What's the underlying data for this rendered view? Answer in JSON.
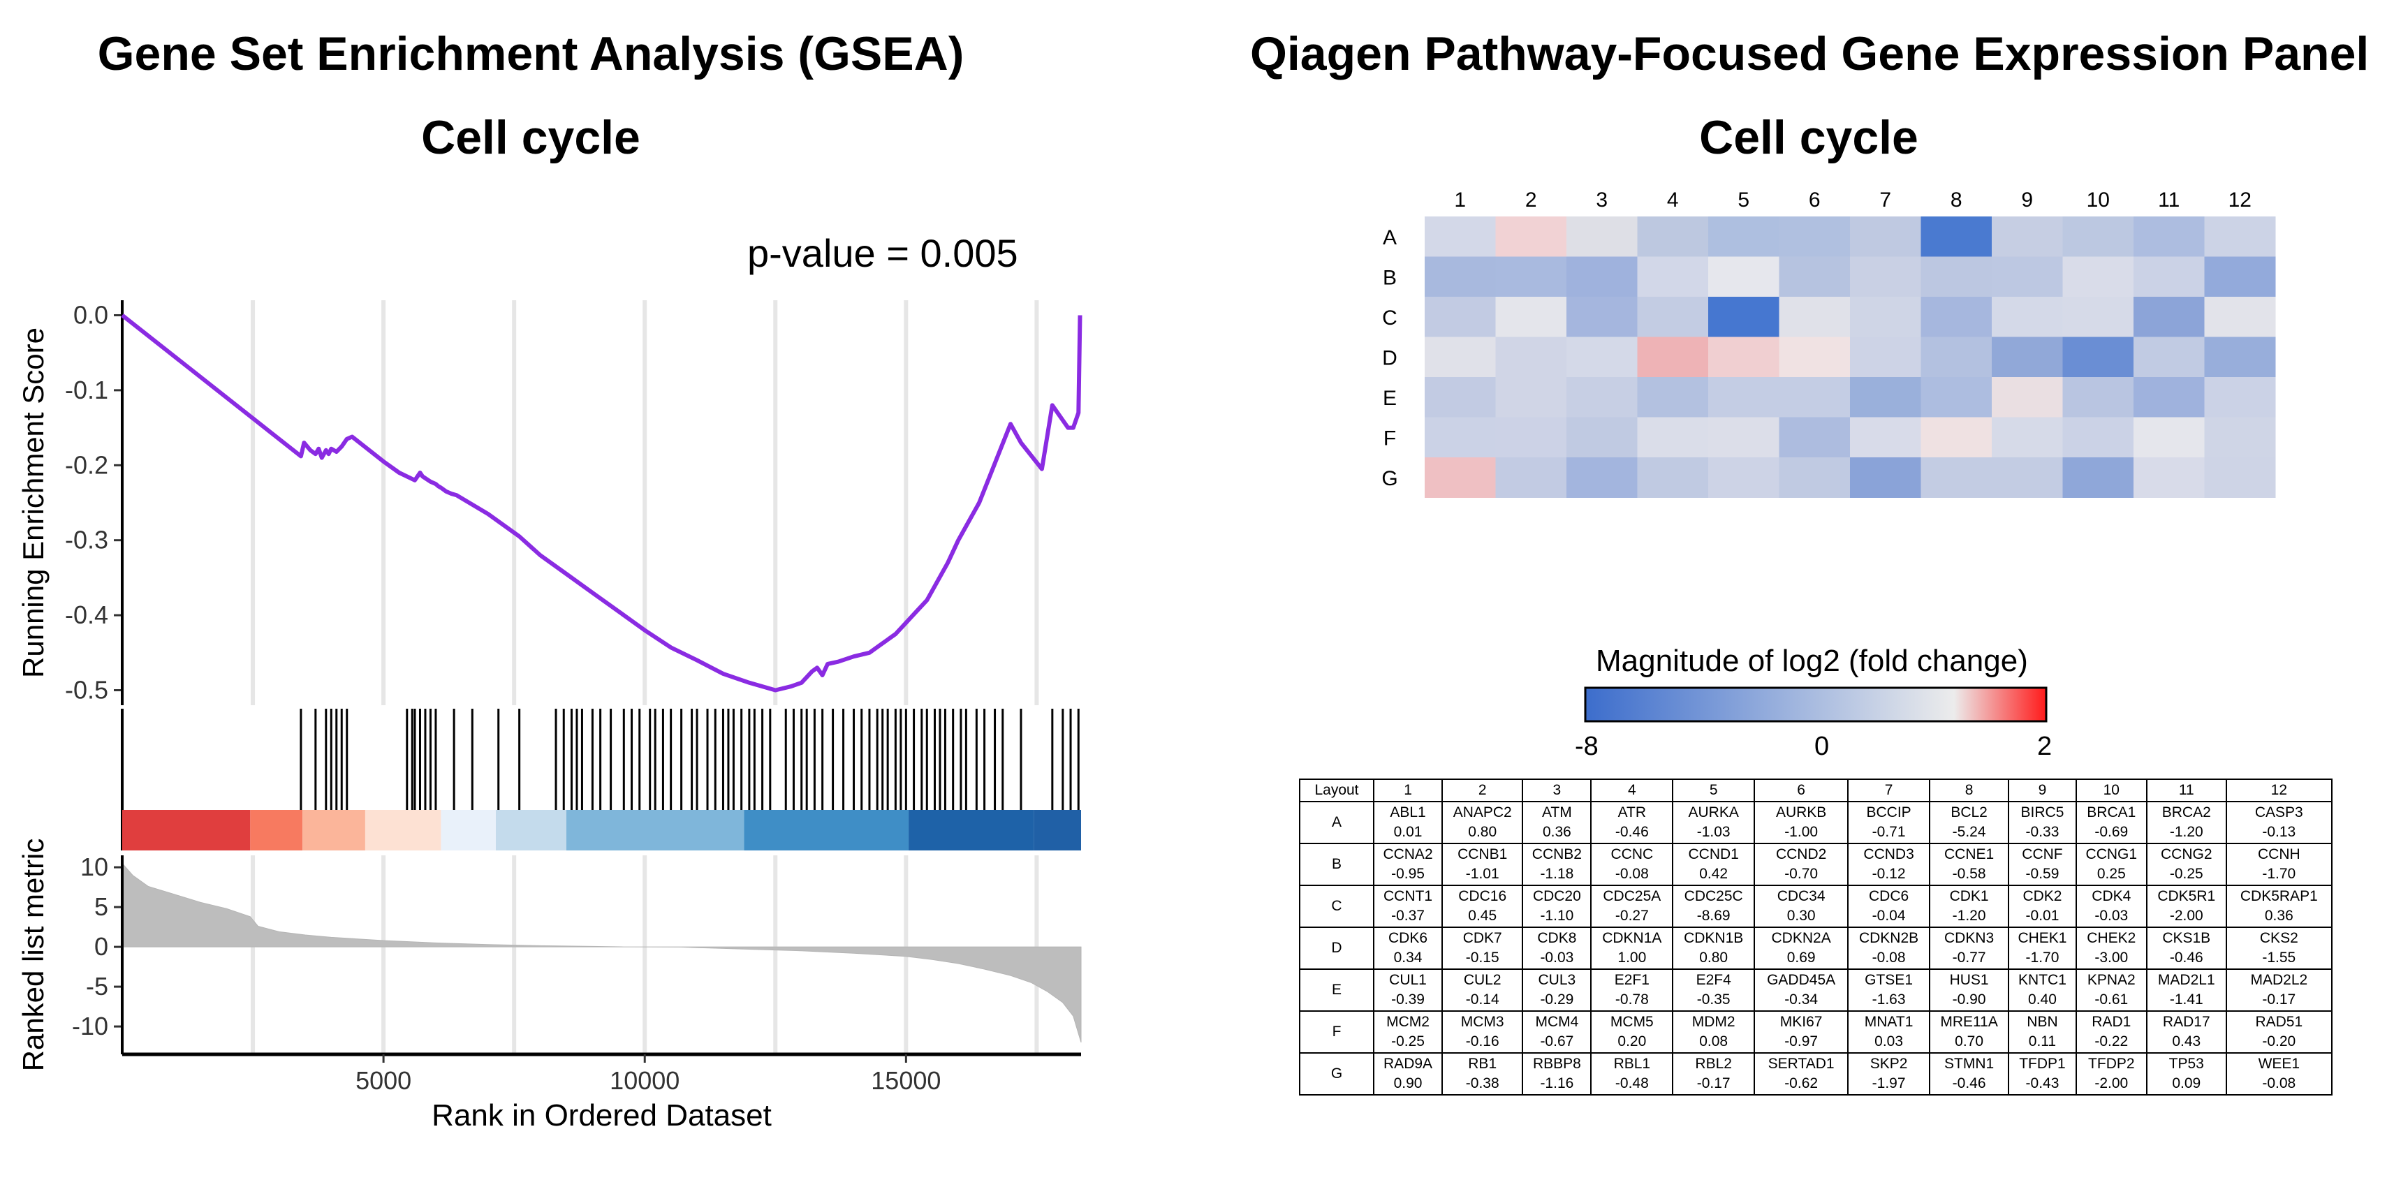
{
  "left": {
    "title": "Gene Set Enrichment Analysis (GSEA)",
    "subtitle": "Cell cycle",
    "pvalue_text": "p-value  = 0.005"
  },
  "right": {
    "title": "Qiagen Pathway-Focused Gene Expression Panel",
    "subtitle": "Cell cycle",
    "legend_title": "Magnitude of log2 (fold change)",
    "legend_ticks": [
      "-8",
      "0",
      "2"
    ]
  },
  "chart_data": [
    {
      "type": "line",
      "ylabel": "Running Enrichment Score",
      "ylim": [
        -0.52,
        0.02
      ],
      "xlim": [
        0,
        18350
      ],
      "yticks": [
        "0.0",
        "-0.1",
        "-0.2",
        "-0.3",
        "-0.4",
        "-0.5"
      ],
      "x": [
        0,
        3420,
        3480,
        3600,
        3700,
        3760,
        3820,
        3900,
        3950,
        4000,
        4100,
        4200,
        4300,
        4400,
        5000,
        5300,
        5600,
        5700,
        5750,
        5900,
        6000,
        6050,
        6100,
        6200,
        6300,
        6400,
        7000,
        7600,
        8000,
        8500,
        9000,
        9500,
        10000,
        10500,
        11000,
        11500,
        12000,
        12500,
        12800,
        13000,
        13200,
        13300,
        13400,
        13500,
        13700,
        14000,
        14300,
        14500,
        14800,
        15000,
        15200,
        15400,
        15600,
        15800,
        16000,
        16200,
        16400,
        16600,
        16800,
        17000,
        17200,
        17600,
        17800,
        18100,
        18200,
        18300,
        18330
      ],
      "y": [
        0.0,
        -0.188,
        -0.17,
        -0.18,
        -0.185,
        -0.178,
        -0.19,
        -0.18,
        -0.185,
        -0.178,
        -0.182,
        -0.175,
        -0.165,
        -0.162,
        -0.195,
        -0.21,
        -0.22,
        -0.21,
        -0.215,
        -0.222,
        -0.225,
        -0.228,
        -0.23,
        -0.235,
        -0.238,
        -0.24,
        -0.265,
        -0.295,
        -0.32,
        -0.345,
        -0.37,
        -0.395,
        -0.42,
        -0.443,
        -0.46,
        -0.478,
        -0.49,
        -0.5,
        -0.495,
        -0.49,
        -0.475,
        -0.47,
        -0.48,
        -0.465,
        -0.462,
        -0.455,
        -0.45,
        -0.44,
        -0.425,
        -0.41,
        -0.395,
        -0.38,
        -0.355,
        -0.33,
        -0.3,
        -0.275,
        -0.25,
        -0.215,
        -0.18,
        -0.145,
        -0.17,
        -0.205,
        -0.12,
        -0.15,
        -0.15,
        -0.13,
        -0.0
      ],
      "xgrid": [
        2500,
        5000,
        7500,
        10000,
        12500,
        15000,
        17500
      ]
    },
    {
      "type": "barcode",
      "hits": [
        3420,
        3700,
        3900,
        4000,
        4100,
        4200,
        4300,
        5450,
        5550,
        5600,
        5700,
        5800,
        5900,
        6000,
        6350,
        6700,
        7200,
        7600,
        8300,
        8450,
        8600,
        8700,
        8800,
        9000,
        9150,
        9350,
        9600,
        9750,
        9900,
        10100,
        10200,
        10350,
        10500,
        10700,
        10900,
        11000,
        11200,
        11350,
        11500,
        11600,
        11700,
        11850,
        12000,
        12100,
        12250,
        12400,
        12700,
        12850,
        13000,
        13100,
        13250,
        13400,
        13600,
        13800,
        14000,
        14150,
        14300,
        14450,
        14550,
        14650,
        14800,
        14900,
        15000,
        15150,
        15300,
        15400,
        15550,
        15650,
        15750,
        15900,
        16050,
        16150,
        16350,
        16500,
        16700,
        16850,
        17200,
        17800,
        18000,
        18150,
        18300
      ],
      "color_bands": [
        {
          "from": 0,
          "to": 2450,
          "color": "#e03e3e"
        },
        {
          "from": 2450,
          "to": 3450,
          "color": "#f77a60"
        },
        {
          "from": 3450,
          "to": 4650,
          "color": "#fbb59a"
        },
        {
          "from": 4650,
          "to": 6100,
          "color": "#fde1d3"
        },
        {
          "from": 6100,
          "to": 7150,
          "color": "#e9f1fa"
        },
        {
          "from": 7150,
          "to": 8500,
          "color": "#c4dbec"
        },
        {
          "from": 8500,
          "to": 11900,
          "color": "#7fb6da"
        },
        {
          "from": 11900,
          "to": 15050,
          "color": "#3f8ec6"
        },
        {
          "from": 15050,
          "to": 17450,
          "color": "#1e62a8"
        },
        {
          "from": 17450,
          "to": 18350,
          "color": "#2060a6"
        }
      ]
    },
    {
      "type": "area",
      "ylabel": "Ranked list metric",
      "xlabel": "Rank in Ordered Dataset",
      "ylim": [
        -13.5,
        11.5
      ],
      "yticks": [
        "10",
        "5",
        "0",
        "-5",
        "-10"
      ],
      "xticks": [
        "5000",
        "10000",
        "15000"
      ],
      "x": [
        0,
        200,
        500,
        1000,
        1500,
        2000,
        2450,
        2600,
        3000,
        3500,
        4000,
        5000,
        6000,
        7000,
        8000,
        9000,
        9600,
        9700,
        10700,
        11000,
        12000,
        13000,
        14000,
        15000,
        15500,
        16000,
        16500,
        17000,
        17400,
        17700,
        18000,
        18200,
        18350
      ],
      "y": [
        10.5,
        9.0,
        7.6,
        6.6,
        5.6,
        4.8,
        3.8,
        2.6,
        1.9,
        1.5,
        1.2,
        0.8,
        0.5,
        0.3,
        0.15,
        0.06,
        0.0,
        0.0,
        -0.03,
        -0.1,
        -0.3,
        -0.5,
        -0.8,
        -1.2,
        -1.6,
        -2.1,
        -2.8,
        -3.6,
        -4.5,
        -5.6,
        -7.0,
        -8.7,
        -12.0
      ]
    },
    {
      "type": "heatmap",
      "columns": [
        "1",
        "2",
        "3",
        "4",
        "5",
        "6",
        "7",
        "8",
        "9",
        "10",
        "11",
        "12"
      ],
      "rows": [
        "A",
        "B",
        "C",
        "D",
        "E",
        "F",
        "G"
      ],
      "color_scale": {
        "min": -8,
        "mid": 0,
        "max": 2,
        "low": "#3c6dcc",
        "midc": "#ececec",
        "high": "#ff1a1a"
      },
      "genes": [
        [
          "ABL1",
          "ANAPC2",
          "ATM",
          "ATR",
          "AURKA",
          "AURKB",
          "BCCIP",
          "BCL2",
          "BIRC5",
          "BRCA1",
          "BRCA2",
          "CASP3"
        ],
        [
          "CCNA2",
          "CCNB1",
          "CCNB2",
          "CCNC",
          "CCND1",
          "CCND2",
          "CCND3",
          "CCNE1",
          "CCNF",
          "CCNG1",
          "CCNG2",
          "CCNH"
        ],
        [
          "CCNT1",
          "CDC16",
          "CDC20",
          "CDC25A",
          "CDC25C",
          "CDC34",
          "CDC6",
          "CDK1",
          "CDK2",
          "CDK4",
          "CDK5R1",
          "CDK5RAP1"
        ],
        [
          "CDK6",
          "CDK7",
          "CDK8",
          "CDKN1A",
          "CDKN1B",
          "CDKN2A",
          "CDKN2B",
          "CDKN3",
          "CHEK1",
          "CHEK2",
          "CKS1B",
          "CKS2"
        ],
        [
          "CUL1",
          "CUL2",
          "CUL3",
          "E2F1",
          "E2F4",
          "GADD45A",
          "GTSE1",
          "HUS1",
          "KNTC1",
          "KPNA2",
          "MAD2L1",
          "MAD2L2"
        ],
        [
          "MCM2",
          "MCM3",
          "MCM4",
          "MCM5",
          "MDM2",
          "MKI67",
          "MNAT1",
          "MRE11A",
          "NBN",
          "RAD1",
          "RAD17",
          "RAD51"
        ],
        [
          "RAD9A",
          "RB1",
          "RBBP8",
          "RBL1",
          "RBL2",
          "SERTAD1",
          "SKP2",
          "STMN1",
          "TFDP1",
          "TFDP2",
          "TP53",
          "WEE1"
        ]
      ],
      "values": [
        [
          "0.01",
          "0.80",
          "0.36",
          "-0.46",
          "-1.03",
          "-1.00",
          "-0.71",
          "-5.24",
          "-0.33",
          "-0.69",
          "-1.20",
          "-0.13"
        ],
        [
          "-0.95",
          "-1.01",
          "-1.18",
          "-0.08",
          "0.42",
          "-0.70",
          "-0.12",
          "-0.58",
          "-0.59",
          "0.25",
          "-0.25",
          "-1.70"
        ],
        [
          "-0.37",
          "0.45",
          "-1.10",
          "-0.27",
          "-8.69",
          "0.30",
          "-0.04",
          "-1.20",
          "-0.01",
          "-0.03",
          "-2.00",
          "0.36"
        ],
        [
          "0.34",
          "-0.15",
          "-0.03",
          "1.00",
          "0.80",
          "0.69",
          "-0.08",
          "-0.77",
          "-1.70",
          "-3.00",
          "-0.46",
          "-1.55"
        ],
        [
          "-0.39",
          "-0.14",
          "-0.29",
          "-0.78",
          "-0.35",
          "-0.34",
          "-1.63",
          "-0.90",
          "0.40",
          "-0.61",
          "-1.41",
          "-0.17"
        ],
        [
          "-0.25",
          "-0.16",
          "-0.67",
          "0.20",
          "0.08",
          "-0.97",
          "0.03",
          "0.70",
          "0.11",
          "-0.22",
          "0.43",
          "-0.20"
        ],
        [
          "0.90",
          "-0.38",
          "-1.16",
          "-0.48",
          "-0.17",
          "-0.62",
          "-1.97",
          "-0.46",
          "-0.43",
          "-2.00",
          "0.09",
          "-0.08"
        ]
      ],
      "colors": [
        [
          "#d3d8e8",
          "#f1d2d4",
          "#dedfe6",
          "#bdc8e0",
          "#aebfe0",
          "#b0c0e0",
          "#bfc9e1",
          "#4a7ad0",
          "#c6cee3",
          "#bcc8e1",
          "#adbde0",
          "#ccd3e6"
        ],
        [
          "#a8b9de",
          "#a9badf",
          "#9fb2dd",
          "#d2d7e8",
          "#e6e7ed",
          "#b6c3e0",
          "#c9d0e4",
          "#bcc7e1",
          "#bdc8e2",
          "#d9dce9",
          "#cbd2e6",
          "#93aadb"
        ],
        [
          "#c2cbe3",
          "#e4e5eb",
          "#a5b6de",
          "#c3cce3",
          "#4677d0",
          "#e0e1e9",
          "#cfd5e6",
          "#a6b7de",
          "#d4d9e8",
          "#d6dae8",
          "#8ca4d8",
          "#e2e3ea"
        ],
        [
          "#e0e1e9",
          "#d0d5e6",
          "#d4d9e8",
          "#eeb3b6",
          "#f0cfd1",
          "#f0e2e3",
          "#cdd3e6",
          "#b3c1e0",
          "#91a8d8",
          "#6a8ed4",
          "#c1cbe3",
          "#98aedb"
        ],
        [
          "#c2cbe3",
          "#d0d5e6",
          "#c7cfe4",
          "#b3c1e0",
          "#c4cde4",
          "#c4cde4",
          "#9ab0db",
          "#adbde0",
          "#eadfe2",
          "#b9c5e1",
          "#9fb2dd",
          "#cbd2e6"
        ],
        [
          "#cbd2e6",
          "#ccd2e6",
          "#c0cae2",
          "#dadde9",
          "#dcdee9",
          "#adbcdf",
          "#d8dbe9",
          "#efe1e2",
          "#d6dae8",
          "#cbd2e6",
          "#e5e6ec",
          "#cfd5e6"
        ],
        [
          "#efc0c3",
          "#c2cbe3",
          "#a3b5de",
          "#c0cae2",
          "#cdd3e6",
          "#c0cae2",
          "#8aa3d8",
          "#c3cce3",
          "#c3cce3",
          "#8fa7d9",
          "#d8dbe9",
          "#ced4e6"
        ]
      ]
    }
  ],
  "table": {
    "corner": "Layout"
  }
}
